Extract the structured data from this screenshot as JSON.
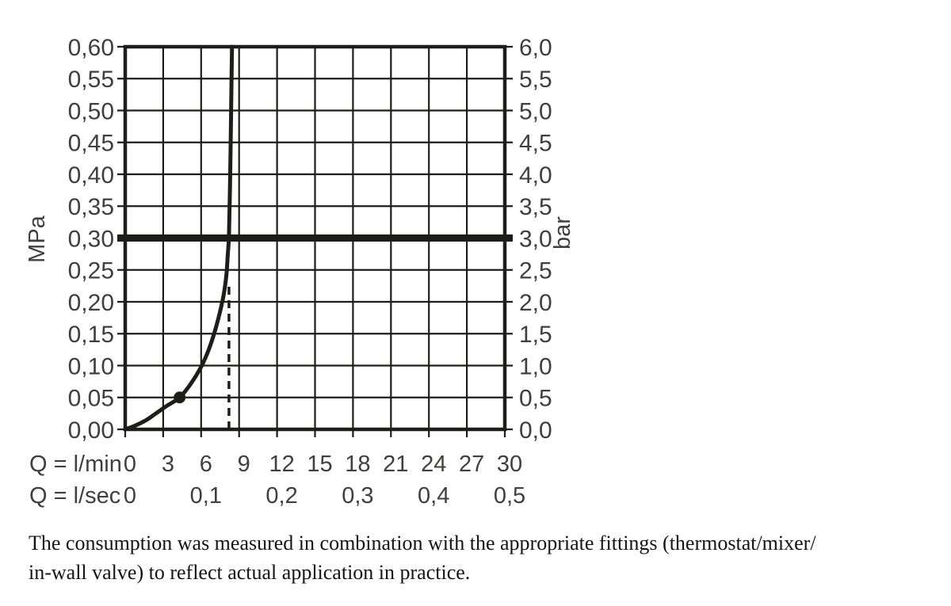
{
  "caption": {
    "line1": "The consumption was measured in combination with the appropriate fittings (thermostat/mixer/",
    "line2": "in-wall valve) to reflect actual application in practice."
  },
  "chart_data": {
    "type": "line",
    "title": "",
    "grid": true,
    "legend": "none",
    "x_axis": {
      "range": [
        0,
        30
      ],
      "grid": [
        0,
        3,
        6,
        9,
        12,
        15,
        18,
        21,
        24,
        27,
        30
      ],
      "rows": [
        {
          "label": "Q = l/min",
          "ticks": [
            {
              "q": 0,
              "t": "0"
            },
            {
              "q": 3,
              "t": "3"
            },
            {
              "q": 6,
              "t": "6"
            },
            {
              "q": 9,
              "t": "9"
            },
            {
              "q": 12,
              "t": "12"
            },
            {
              "q": 15,
              "t": "15"
            },
            {
              "q": 18,
              "t": "18"
            },
            {
              "q": 21,
              "t": "21"
            },
            {
              "q": 24,
              "t": "24"
            },
            {
              "q": 27,
              "t": "27"
            },
            {
              "q": 30,
              "t": "30"
            }
          ]
        },
        {
          "label": "Q = l/sec",
          "ticks": [
            {
              "q": 0,
              "t": "0"
            },
            {
              "q": 6,
              "t": "0,1"
            },
            {
              "q": 12,
              "t": "0,2"
            },
            {
              "q": 18,
              "t": "0,3"
            },
            {
              "q": 24,
              "t": "0,4"
            },
            {
              "q": 30,
              "t": "0,5"
            }
          ]
        }
      ]
    },
    "y_axis": {
      "range": [
        0,
        0.6
      ],
      "left_label": "MPa",
      "right_label": "bar",
      "ticks": [
        {
          "v": 0.0,
          "left": "0,00",
          "right": "0,0"
        },
        {
          "v": 0.05,
          "left": "0,05",
          "right": "0,5"
        },
        {
          "v": 0.1,
          "left": "0,10",
          "right": "1,0"
        },
        {
          "v": 0.15,
          "left": "0,15",
          "right": "1,5"
        },
        {
          "v": 0.2,
          "left": "0,20",
          "right": "2,0"
        },
        {
          "v": 0.25,
          "left": "0,25",
          "right": "2,5"
        },
        {
          "v": 0.3,
          "left": "0,30",
          "right": "3,0"
        },
        {
          "v": 0.35,
          "left": "0,35",
          "right": "3,5"
        },
        {
          "v": 0.4,
          "left": "0,40",
          "right": "4,0"
        },
        {
          "v": 0.45,
          "left": "0,45",
          "right": "4,5"
        },
        {
          "v": 0.5,
          "left": "0,50",
          "right": "5,0"
        },
        {
          "v": 0.55,
          "left": "0,55",
          "right": "5,5"
        },
        {
          "v": 0.6,
          "left": "0,60",
          "right": "6,0"
        }
      ]
    },
    "series": [
      {
        "name": "flow-curve",
        "points": [
          [
            0,
            0
          ],
          [
            0.8,
            0.006
          ],
          [
            1.7,
            0.015
          ],
          [
            2.5,
            0.026
          ],
          [
            3.3,
            0.037
          ],
          [
            4.3,
            0.05
          ],
          [
            5.2,
            0.072
          ],
          [
            6.0,
            0.098
          ],
          [
            6.6,
            0.125
          ],
          [
            7.1,
            0.155
          ],
          [
            7.5,
            0.185
          ],
          [
            7.8,
            0.213
          ],
          [
            8.0,
            0.243
          ],
          [
            8.1,
            0.272
          ],
          [
            8.2,
            0.305
          ],
          [
            8.28,
            0.38
          ],
          [
            8.35,
            0.47
          ],
          [
            8.41,
            0.56
          ],
          [
            8.44,
            0.6
          ]
        ]
      }
    ],
    "reference_line": {
      "v": 0.3
    },
    "dashed_line": {
      "q": 8.2,
      "v_top": 0.224
    },
    "marker": {
      "q": 4.3,
      "v": 0.05
    },
    "colors": {
      "line": "#1d1d1b",
      "text": "#3f3f3e"
    }
  }
}
